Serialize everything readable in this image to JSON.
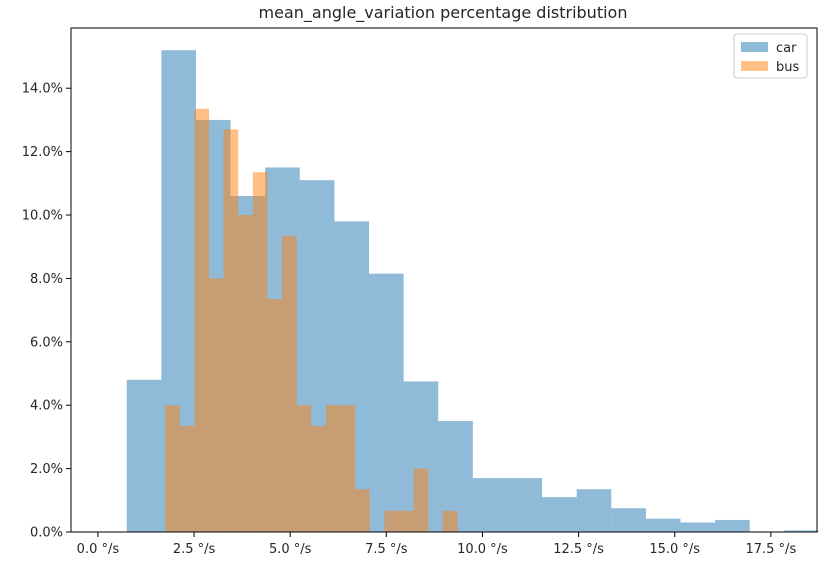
{
  "chart_data": {
    "type": "histogram",
    "title": "mean_angle_variation percentage distribution",
    "xlabel": "",
    "ylabel": "",
    "xlim": [
      -0.7,
      18.7
    ],
    "ylim": [
      0,
      15.9
    ],
    "x_ticks": [
      0,
      2.5,
      5,
      7.5,
      10,
      12.5,
      15,
      17.5
    ],
    "x_tick_labels": [
      "0.0 °/s",
      "2.5 °/s",
      "5.0 °/s",
      "7.5 °/s",
      "10.0 °/s",
      "12.5 °/s",
      "15.0 °/s",
      "17.5 °/s"
    ],
    "y_ticks": [
      0,
      2,
      4,
      6,
      8,
      10,
      12,
      14
    ],
    "y_tick_labels": [
      "0.0%",
      "2.0%",
      "4.0%",
      "6.0%",
      "8.0%",
      "10.0%",
      "12.0%",
      "14.0%"
    ],
    "grid": false,
    "legend_position": "top-right",
    "series": [
      {
        "name": "car",
        "color": "#1f77b4",
        "alpha": 0.5,
        "bins": [
          {
            "x0": 0.75,
            "x1": 1.65,
            "value": 4.8
          },
          {
            "x0": 1.65,
            "x1": 2.55,
            "value": 15.2
          },
          {
            "x0": 2.55,
            "x1": 3.45,
            "value": 13.0
          },
          {
            "x0": 3.45,
            "x1": 4.35,
            "value": 10.6
          },
          {
            "x0": 4.35,
            "x1": 5.25,
            "value": 11.5
          },
          {
            "x0": 5.25,
            "x1": 6.15,
            "value": 11.1
          },
          {
            "x0": 6.15,
            "x1": 7.05,
            "value": 9.8
          },
          {
            "x0": 7.05,
            "x1": 7.95,
            "value": 8.15
          },
          {
            "x0": 7.95,
            "x1": 8.85,
            "value": 4.75
          },
          {
            "x0": 8.85,
            "x1": 9.75,
            "value": 3.5
          },
          {
            "x0": 9.75,
            "x1": 10.65,
            "value": 1.7
          },
          {
            "x0": 10.65,
            "x1": 11.55,
            "value": 1.7
          },
          {
            "x0": 11.55,
            "x1": 12.45,
            "value": 1.1
          },
          {
            "x0": 12.45,
            "x1": 13.35,
            "value": 1.35
          },
          {
            "x0": 13.35,
            "x1": 14.25,
            "value": 0.75
          },
          {
            "x0": 14.25,
            "x1": 15.15,
            "value": 0.42
          },
          {
            "x0": 15.15,
            "x1": 16.05,
            "value": 0.3
          },
          {
            "x0": 16.05,
            "x1": 16.95,
            "value": 0.38
          },
          {
            "x0": 16.95,
            "x1": 17.85,
            "value": 0.0
          },
          {
            "x0": 17.85,
            "x1": 18.75,
            "value": 0.05
          }
        ]
      },
      {
        "name": "bus",
        "color": "#ff7f0e",
        "alpha": 0.5,
        "bins": [
          {
            "x0": 1.75,
            "x1": 2.13,
            "value": 4.0
          },
          {
            "x0": 2.13,
            "x1": 2.51,
            "value": 3.35
          },
          {
            "x0": 2.51,
            "x1": 2.89,
            "value": 13.35
          },
          {
            "x0": 2.89,
            "x1": 3.27,
            "value": 8.0
          },
          {
            "x0": 3.27,
            "x1": 3.65,
            "value": 12.7
          },
          {
            "x0": 3.65,
            "x1": 4.03,
            "value": 10.0
          },
          {
            "x0": 4.03,
            "x1": 4.41,
            "value": 11.35
          },
          {
            "x0": 4.41,
            "x1": 4.79,
            "value": 7.35
          },
          {
            "x0": 4.79,
            "x1": 5.17,
            "value": 9.35
          },
          {
            "x0": 5.17,
            "x1": 5.55,
            "value": 4.0
          },
          {
            "x0": 5.55,
            "x1": 5.93,
            "value": 3.35
          },
          {
            "x0": 5.93,
            "x1": 6.31,
            "value": 4.0
          },
          {
            "x0": 6.31,
            "x1": 6.69,
            "value": 4.0
          },
          {
            "x0": 6.69,
            "x1": 7.07,
            "value": 1.35
          },
          {
            "x0": 7.07,
            "x1": 7.45,
            "value": 0.0
          },
          {
            "x0": 7.45,
            "x1": 7.83,
            "value": 0.67
          },
          {
            "x0": 7.83,
            "x1": 8.21,
            "value": 0.67
          },
          {
            "x0": 8.21,
            "x1": 8.59,
            "value": 2.0
          },
          {
            "x0": 8.59,
            "x1": 8.97,
            "value": 0.0
          },
          {
            "x0": 8.97,
            "x1": 9.35,
            "value": 0.67
          }
        ]
      }
    ]
  }
}
